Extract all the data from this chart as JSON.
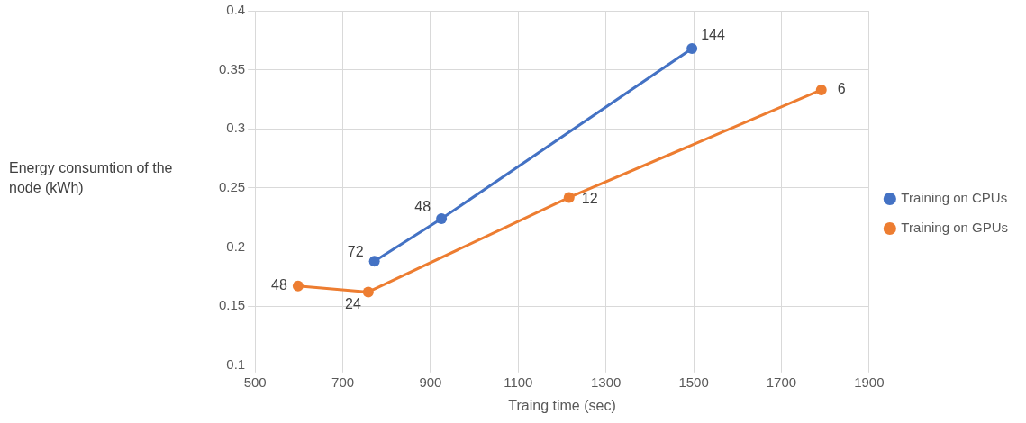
{
  "chart_data": {
    "type": "line",
    "xlabel": "Traing time (sec)",
    "ylabel": "Energy consumtion of the node (kWh)",
    "xlim": [
      500,
      1900
    ],
    "xticks": [
      500,
      700,
      900,
      1100,
      1300,
      1500,
      1700,
      1900
    ],
    "ylim": [
      0.1,
      0.4
    ],
    "yticks": [
      0.1,
      0.15,
      0.2,
      0.25,
      0.3,
      0.35,
      0.4
    ],
    "grid": true,
    "legend": "right",
    "marker": "circle",
    "series": [
      {
        "name": "Training on CPUs",
        "color": "#4472c4",
        "x": [
          772,
          925,
          1496
        ],
        "values": [
          0.188,
          0.224,
          0.368
        ]
      },
      {
        "name": "Training on GPUs",
        "color": "#ed7d31",
        "x": [
          598,
          758,
          1216,
          1791
        ],
        "values": [
          0.167,
          0.162,
          0.242,
          0.333
        ]
      }
    ],
    "annotations": [
      {
        "text": "72",
        "x": 772,
        "y": 0.188
      },
      {
        "text": "48",
        "x": 925,
        "y": 0.224
      },
      {
        "text": "144",
        "x": 1496,
        "y": 0.368
      },
      {
        "text": "48",
        "x": 598,
        "y": 0.167
      },
      {
        "text": "24",
        "x": 758,
        "y": 0.162
      },
      {
        "text": "12",
        "x": 1216,
        "y": 0.242
      },
      {
        "text": "6",
        "x": 1791,
        "y": 0.333
      }
    ]
  }
}
